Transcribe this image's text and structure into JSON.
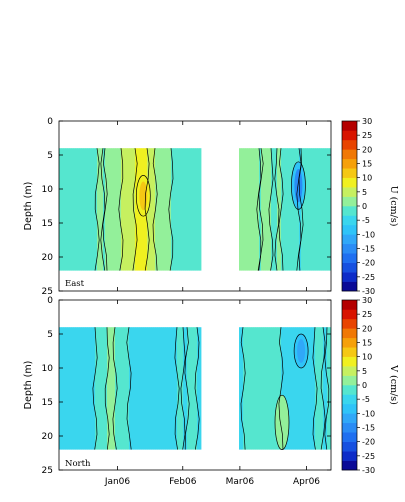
{
  "colors": {
    "background_gap": "#ffffff",
    "contour_line": "#000000",
    "levels": [
      "#0a0a96",
      "#0d2cc8",
      "#1650e0",
      "#1f6ff0",
      "#2a8cf5",
      "#30a8f8",
      "#2fc4f8",
      "#3ad6ee",
      "#55e6cf",
      "#93f09a",
      "#c6f060",
      "#f0f020",
      "#f5c814",
      "#f5a00a",
      "#f07805",
      "#e84400",
      "#d81400",
      "#b40000"
    ]
  },
  "chart_data": [
    {
      "type": "heatmap",
      "panel": "top",
      "label": "East",
      "xlabel": "",
      "ylabel": "Depth (m)",
      "colorbar_title": "U (cm/s)",
      "ylim": [
        0,
        25
      ],
      "y_inverted": true,
      "yticks": [
        "0",
        "5",
        "10",
        "15",
        "20",
        "25"
      ],
      "xticks": [
        "Jan06",
        "Feb06",
        "Mar06",
        "Apr06"
      ],
      "data_depth_range": [
        4,
        22
      ],
      "colorbar_ticks": [
        "30",
        "25",
        "20",
        "15",
        "10",
        "5",
        "0",
        "-5",
        "-10",
        "-15",
        "-20",
        "-25",
        "-30"
      ],
      "clim": [
        -30,
        30
      ],
      "bands": [
        {
          "x_frac": 0.0,
          "value": -2
        },
        {
          "x_frac": 0.16,
          "value": 0
        },
        {
          "x_frac": 0.28,
          "value": 7
        },
        {
          "x_frac": 0.31,
          "value": 9
        },
        {
          "x_frac": 0.34,
          "value": 4
        },
        {
          "x_frac": 0.38,
          "value": 1
        },
        {
          "x_frac": 0.45,
          "value": -2
        },
        {
          "x_frac": 0.55,
          "value": 0
        },
        {
          "x_frac": 0.67,
          "value": 1
        },
        {
          "x_frac": 0.8,
          "value": 0
        },
        {
          "x_frac": 0.88,
          "value": -3
        },
        {
          "x_frac": 0.95,
          "value": -1
        }
      ],
      "gap_x_frac": [
        0.52,
        0.66
      ],
      "features": [
        {
          "x_frac": 0.88,
          "depth": [
            6,
            13
          ],
          "value": -15
        },
        {
          "x_frac": 0.31,
          "depth": [
            8,
            14
          ],
          "value": 12
        }
      ]
    },
    {
      "type": "heatmap",
      "panel": "bottom",
      "label": "North",
      "xlabel": "",
      "ylabel": "Depth (m)",
      "colorbar_title": "V (cm/s)",
      "ylim": [
        0,
        25
      ],
      "y_inverted": true,
      "yticks": [
        "0",
        "5",
        "10",
        "15",
        "20",
        "25"
      ],
      "xticks": [
        "Jan06",
        "Feb06",
        "Mar06",
        "Apr06"
      ],
      "data_depth_range": [
        4,
        22
      ],
      "colorbar_ticks": [
        "30",
        "25",
        "20",
        "15",
        "10",
        "5",
        "0",
        "-5",
        "-10",
        "-15",
        "-20",
        "-25",
        "-30"
      ],
      "clim": [
        -30,
        30
      ],
      "bands": [
        {
          "x_frac": 0.0,
          "value": -4
        },
        {
          "x_frac": 0.1,
          "value": -6
        },
        {
          "x_frac": 0.2,
          "value": 1
        },
        {
          "x_frac": 0.3,
          "value": -6
        },
        {
          "x_frac": 0.4,
          "value": -4
        },
        {
          "x_frac": 0.47,
          "value": -3
        },
        {
          "x_frac": 0.7,
          "value": -3
        },
        {
          "x_frac": 0.78,
          "value": -2
        },
        {
          "x_frac": 0.88,
          "value": -5
        },
        {
          "x_frac": 0.95,
          "value": -3
        }
      ],
      "gap_x_frac": [
        0.52,
        0.66
      ],
      "features": [
        {
          "x_frac": 0.89,
          "depth": [
            5,
            10
          ],
          "value": -12
        },
        {
          "x_frac": 0.82,
          "depth": [
            14,
            22
          ],
          "value": 1
        }
      ]
    }
  ]
}
